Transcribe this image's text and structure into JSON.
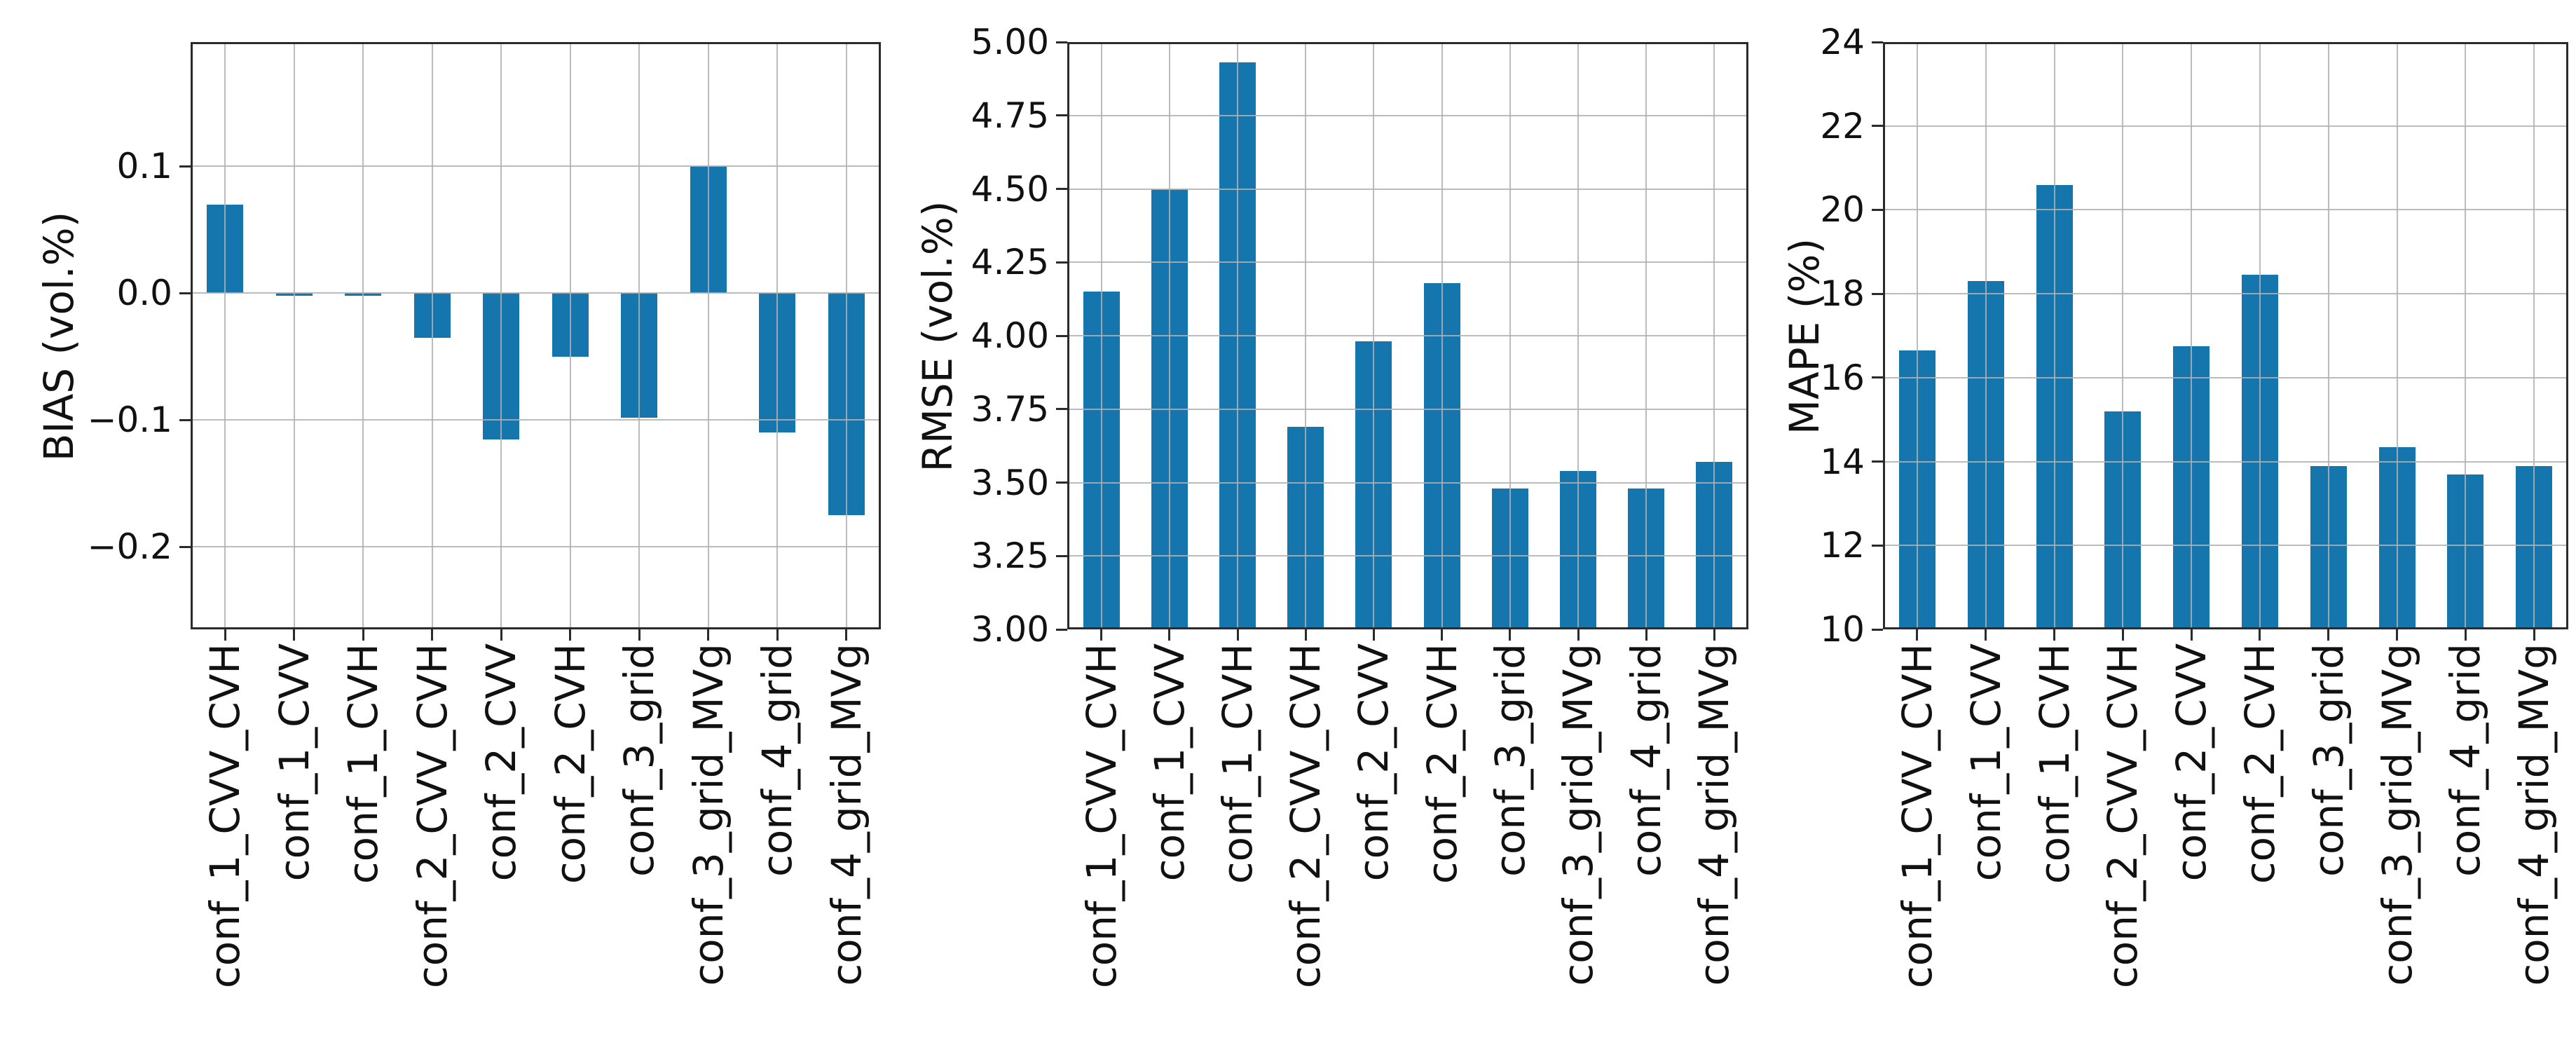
{
  "figure": {
    "background": "#ffffff"
  },
  "style": {
    "bar_color": "#1576ae",
    "grid_color": "rgba(176,176,176,0.85)",
    "spine_color": "#2b2b2b",
    "text_color": "#111111"
  },
  "chart_data": [
    {
      "type": "bar",
      "title": "",
      "xlabel": "",
      "ylabel": "BIAS (vol.%)",
      "legend": "none",
      "grid": true,
      "categories": [
        "conf_1_CVV_CVH",
        "conf_1_CVV",
        "conf_1_CVH",
        "conf_2_CVV_CVH",
        "conf_2_CVV",
        "conf_2_CVH",
        "conf_3_grid",
        "conf_3_grid_MVg",
        "conf_4_grid",
        "conf_4_grid_MVg"
      ],
      "values": [
        0.07,
        -0.002,
        -0.002,
        -0.035,
        -0.115,
        -0.05,
        -0.098,
        0.1,
        -0.11,
        -0.175
      ],
      "ylim": [
        -0.265,
        0.198
      ],
      "yticks": [
        {
          "v": 0.1,
          "label": "0.1"
        },
        {
          "v": 0.0,
          "label": "0.0"
        },
        {
          "v": -0.1,
          "label": "−0.1"
        },
        {
          "v": -0.2,
          "label": "−0.2"
        }
      ]
    },
    {
      "type": "bar",
      "title": "",
      "xlabel": "",
      "ylabel": "RMSE (vol.%)",
      "legend": "none",
      "grid": true,
      "categories": [
        "conf_1_CVV_CVH",
        "conf_1_CVV",
        "conf_1_CVH",
        "conf_2_CVV_CVH",
        "conf_2_CVV",
        "conf_2_CVH",
        "conf_3_grid",
        "conf_3_grid_MVg",
        "conf_4_grid",
        "conf_4_grid_MVg"
      ],
      "values": [
        4.15,
        4.5,
        4.93,
        3.69,
        3.98,
        4.18,
        3.48,
        3.54,
        3.48,
        3.57
      ],
      "ylim": [
        3.0,
        5.0
      ],
      "yticks": [
        {
          "v": 5.0,
          "label": "5.00"
        },
        {
          "v": 4.75,
          "label": "4.75"
        },
        {
          "v": 4.5,
          "label": "4.50"
        },
        {
          "v": 4.25,
          "label": "4.25"
        },
        {
          "v": 4.0,
          "label": "4.00"
        },
        {
          "v": 3.75,
          "label": "3.75"
        },
        {
          "v": 3.5,
          "label": "3.50"
        },
        {
          "v": 3.25,
          "label": "3.25"
        },
        {
          "v": 3.0,
          "label": "3.00"
        }
      ]
    },
    {
      "type": "bar",
      "title": "",
      "xlabel": "",
      "ylabel": "MAPE (%)",
      "legend": "none",
      "grid": true,
      "categories": [
        "conf_1_CVV_CVH",
        "conf_1_CVV",
        "conf_1_CVH",
        "conf_2_CVV_CVH",
        "conf_2_CVV",
        "conf_2_CVH",
        "conf_3_grid",
        "conf_3_grid_MVg",
        "conf_4_grid",
        "conf_4_grid_MVg"
      ],
      "values": [
        16.65,
        18.3,
        20.6,
        15.2,
        16.75,
        18.45,
        13.9,
        14.35,
        13.7,
        13.9
      ],
      "ylim": [
        10,
        24
      ],
      "yticks": [
        {
          "v": 24,
          "label": "24"
        },
        {
          "v": 22,
          "label": "22"
        },
        {
          "v": 20,
          "label": "20"
        },
        {
          "v": 18,
          "label": "18"
        },
        {
          "v": 16,
          "label": "16"
        },
        {
          "v": 14,
          "label": "14"
        },
        {
          "v": 12,
          "label": "12"
        },
        {
          "v": 10,
          "label": "10"
        }
      ]
    }
  ]
}
